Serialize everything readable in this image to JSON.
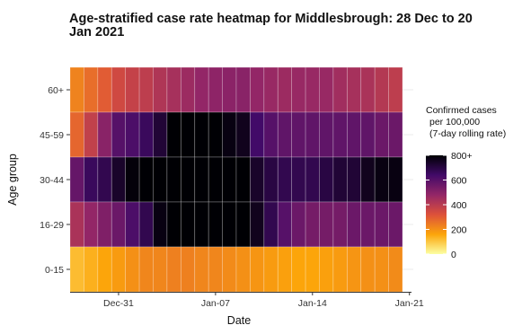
{
  "chart_data": {
    "type": "heatmap",
    "title_lines": [
      "Age-stratified case rate heatmap for Middlesbrough: 28 Dec to 20",
      "Jan 2021"
    ],
    "xlabel": "Date",
    "ylabel": "Age group",
    "x_start_date": "2020-12-28",
    "x_end_date": "2021-01-20",
    "x_tick_labels": [
      "Dec-31",
      "Jan-07",
      "Jan-14",
      "Jan-21"
    ],
    "x_tick_dates": [
      "2020-12-31",
      "2021-01-07",
      "2021-01-14",
      "2021-01-21"
    ],
    "age_groups": [
      "60+",
      "45-59",
      "30-44",
      "16-29",
      "0-15"
    ],
    "values": [
      [
        225,
        265,
        300,
        350,
        375,
        390,
        420,
        440,
        460,
        480,
        490,
        495,
        500,
        480,
        470,
        460,
        470,
        470,
        470,
        450,
        440,
        430,
        410,
        390
      ],
      [
        280,
        380,
        500,
        600,
        620,
        660,
        720,
        800,
        820,
        830,
        810,
        780,
        760,
        640,
        600,
        580,
        580,
        580,
        580,
        580,
        580,
        580,
        560,
        560
      ],
      [
        570,
        660,
        680,
        740,
        790,
        820,
        860,
        880,
        900,
        900,
        880,
        860,
        800,
        740,
        700,
        680,
        680,
        680,
        700,
        720,
        720,
        760,
        780,
        780
      ],
      [
        430,
        480,
        520,
        560,
        620,
        680,
        780,
        820,
        840,
        860,
        860,
        850,
        840,
        760,
        680,
        600,
        560,
        540,
        540,
        540,
        560,
        560,
        560,
        560
      ],
      [
        120,
        140,
        160,
        180,
        200,
        220,
        220,
        230,
        230,
        220,
        220,
        210,
        200,
        190,
        180,
        170,
        160,
        160,
        170,
        180,
        190,
        200,
        200,
        210
      ]
    ],
    "legend": {
      "title_lines": [
        "Confirmed cases",
        "per 100,000",
        "(7-day rolling rate)"
      ],
      "tick_labels": [
        "0",
        "200",
        "400",
        "600",
        "800+"
      ],
      "min": 0,
      "max": 800,
      "colors": [
        "#fcffa4",
        "#fca50a",
        "#dd513a",
        "#932667",
        "#420a68",
        "#000004"
      ]
    },
    "grid": true,
    "legend_position": "right"
  }
}
